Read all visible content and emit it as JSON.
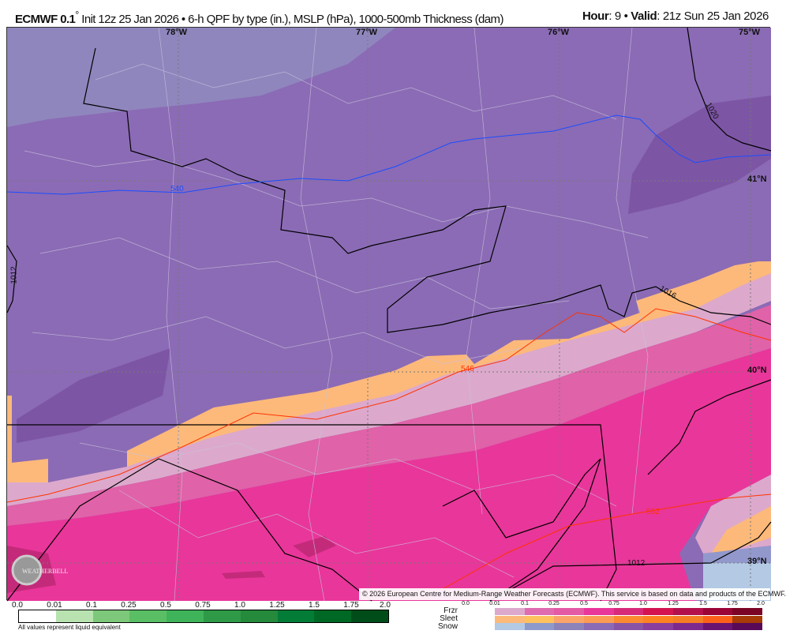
{
  "header": {
    "model": "ECMWF 0.1",
    "degree": "°",
    "description": " Init 12z 25 Jan 2026 • 6-h QPF by type (in.), MSLP (hPa), 1000-500mb Thickness (dam)",
    "hour_label": "Hour",
    "hour": ": 9 • ",
    "valid_label": "Valid",
    "valid": ": 21z Sun 25 Jan 2026"
  },
  "map": {
    "lon_labels": [
      "78°W",
      "77°W",
      "76°W",
      "75°W"
    ],
    "lat_labels": [
      "41°N",
      "40°N",
      "39°N"
    ],
    "thickness_labels": [
      "540",
      "546",
      "552"
    ],
    "isobar_labels": [
      "1012",
      "1016",
      "1020",
      "1012"
    ],
    "colors": {
      "snow_light": "#8f86bd",
      "snow": "#8b6bb5",
      "snow_heavy": "#7d55a5",
      "sleet": "#fdb97a",
      "frzr_light": "#dca9cc",
      "frzr": "#e062a8",
      "frzr_heavy": "#e9369a",
      "frzr_max": "#c42a7a",
      "snow_trace": "#b3c9e4",
      "thickness_540": "#1a4dff",
      "thickness_546": "#ff3300"
    }
  },
  "logo": {
    "text": "WEATHERBELL"
  },
  "copyright": "© 2026 European Centre for Medium-Range Weather Forecasts (ECMWF). This service is based on data and products of the ECMWF.",
  "legend": {
    "qpf_ticks": [
      "0.0",
      "0.01",
      "0.1",
      "0.25",
      "0.5",
      "0.75",
      "1.0",
      "1.25",
      "1.5",
      "1.75",
      "2.0"
    ],
    "qpf_colors": [
      "#ffffff",
      "#b8e3b0",
      "#7dc87a",
      "#5abe65",
      "#3fb35a",
      "#2e9a47",
      "#258a3c",
      "#037c38",
      "#006825",
      "#004d1a"
    ],
    "note": "All values represent liquid equivalent",
    "type_ticks": [
      "0.0",
      "0.01",
      "0.1",
      "0.25",
      "0.5",
      "0.75",
      "1.0",
      "1.25",
      "1.5",
      "1.75",
      "2.0"
    ],
    "rows": [
      {
        "label": "Frzr",
        "colors": [
          "#dca9cc",
          "#df6bb0",
          "#e45aa5",
          "#e9369a",
          "#d72b79",
          "#d31450",
          "#b40f4d",
          "#9a0436",
          "#7a0425"
        ]
      },
      {
        "label": "Sleet",
        "colors": [
          "#fdb97a",
          "#fec15e",
          "#fba46a",
          "#fb9b54",
          "#fb8a30",
          "#fd8221",
          "#f57d23",
          "#fc6119",
          "#a83a06"
        ]
      },
      {
        "label": "Snow",
        "colors": [
          "#b3c9e4",
          "#8e9acb",
          "#8c83bb",
          "#8b6bb5",
          "#8953a6",
          "#8a3e9e",
          "#7d2a8e",
          "#6a1472",
          "#580a58"
        ]
      }
    ]
  }
}
